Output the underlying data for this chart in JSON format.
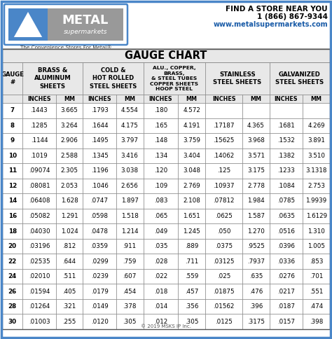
{
  "title": "GAUGE CHART",
  "tagline": "The Convenience Stores For Metal®",
  "find_store": "FIND A STORE NEAR YOU",
  "phone": "1 (866) 867-9344",
  "website": "www.metalsupermarkets.com",
  "copyright": "© 2019 MSKS IP Inc.",
  "rows": [
    [
      "7",
      ".1443",
      "3.665",
      ".1793",
      "4.554",
      ".180",
      "4.572",
      "",
      "",
      "",
      ""
    ],
    [
      "8",
      ".1285",
      "3.264",
      ".1644",
      "4.175",
      ".165",
      "4.191",
      ".17187",
      "4.365",
      ".1681",
      "4.269"
    ],
    [
      "9",
      ".1144",
      "2.906",
      ".1495",
      "3.797",
      ".148",
      "3.759",
      ".15625",
      "3.968",
      ".1532",
      "3.891"
    ],
    [
      "10",
      ".1019",
      "2.588",
      ".1345",
      "3.416",
      ".134",
      "3.404",
      ".14062",
      "3.571",
      ".1382",
      "3.510"
    ],
    [
      "11",
      ".09074",
      "2.305",
      ".1196",
      "3.038",
      ".120",
      "3.048",
      ".125",
      "3.175",
      ".1233",
      "3.1318"
    ],
    [
      "12",
      ".08081",
      "2.053",
      ".1046",
      "2.656",
      ".109",
      "2.769",
      ".10937",
      "2.778",
      ".1084",
      "2.753"
    ],
    [
      "14",
      ".06408",
      "1.628",
      ".0747",
      "1.897",
      ".083",
      "2.108",
      ".07812",
      "1.984",
      ".0785",
      "1.9939"
    ],
    [
      "16",
      ".05082",
      "1.291",
      ".0598",
      "1.518",
      ".065",
      "1.651",
      ".0625",
      "1.587",
      ".0635",
      "1.6129"
    ],
    [
      "18",
      ".04030",
      "1.024",
      ".0478",
      "1.214",
      ".049",
      "1.245",
      ".050",
      "1.270",
      ".0516",
      "1.310"
    ],
    [
      "20",
      ".03196",
      ".812",
      ".0359",
      ".911",
      ".035",
      ".889",
      ".0375",
      ".9525",
      ".0396",
      "1.005"
    ],
    [
      "22",
      ".02535",
      ".644",
      ".0299",
      ".759",
      ".028",
      ".711",
      ".03125",
      ".7937",
      ".0336",
      ".853"
    ],
    [
      "24",
      ".02010",
      ".511",
      ".0239",
      ".607",
      ".022",
      ".559",
      ".025",
      ".635",
      ".0276",
      ".701"
    ],
    [
      "26",
      ".01594",
      ".405",
      ".0179",
      ".454",
      ".018",
      ".457",
      ".01875",
      ".476",
      ".0217",
      ".551"
    ],
    [
      "28",
      ".01264",
      ".321",
      ".0149",
      ".378",
      ".014",
      ".356",
      ".01562",
      ".396",
      ".0187",
      ".474"
    ],
    [
      "30",
      ".01003",
      ".255",
      ".0120",
      ".305",
      ".012",
      ".305",
      ".0125",
      ".3175",
      ".0157",
      ".398"
    ]
  ],
  "header_bg": "#e8e8e8",
  "row_bg_white": "#ffffff",
  "border_color": "#777777",
  "outer_border_color": "#4a86c8",
  "logo_blue_bg": "#4a86c8",
  "logo_gray_bg": "#888888",
  "logo_border_color": "#4a86c8",
  "col_ratios": [
    0.62,
    1.0,
    0.82,
    1.0,
    0.82,
    1.05,
    0.82,
    1.12,
    0.82,
    1.0,
    0.82
  ]
}
